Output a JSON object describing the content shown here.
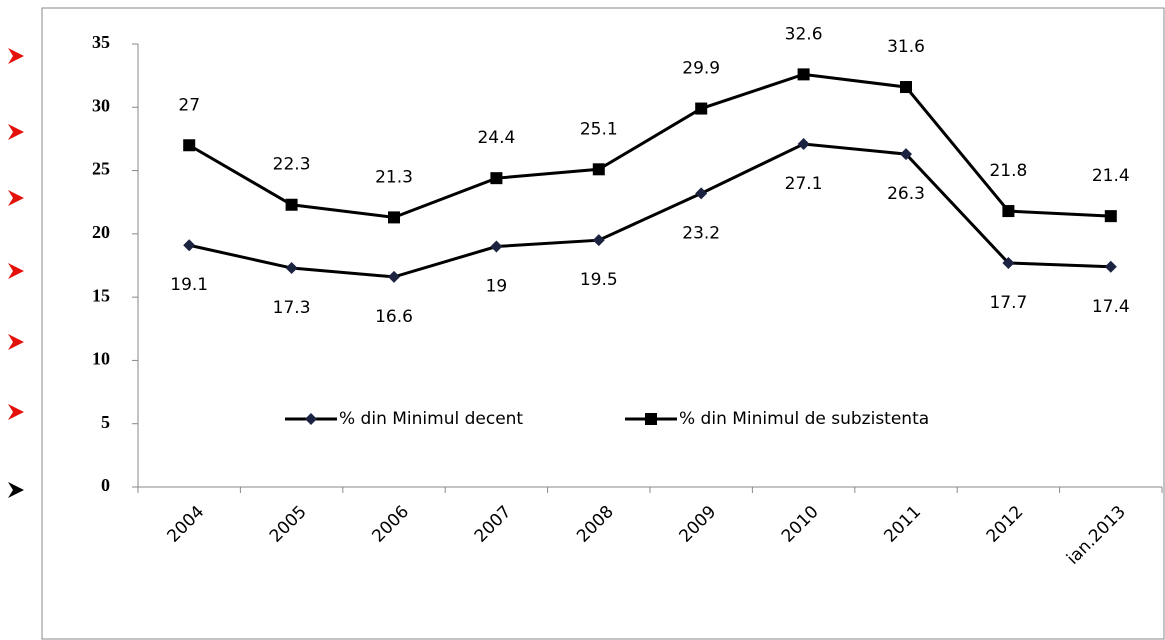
{
  "chart_data": {
    "type": "line",
    "categories": [
      "2004",
      "2005",
      "2006",
      "2007",
      "2008",
      "2009",
      "2010",
      "2011",
      "2012",
      "ian.2013"
    ],
    "series": [
      {
        "name": "% din Minimul decent",
        "color": "#1c2340",
        "marker": "diamond",
        "values": [
          19.1,
          17.3,
          16.6,
          19,
          19.5,
          23.2,
          27.1,
          26.3,
          17.7,
          17.4
        ]
      },
      {
        "name": "% din Minimul de subzistenta",
        "color": "#000000",
        "marker": "square",
        "values": [
          27,
          22.3,
          21.3,
          24.4,
          25.1,
          29.9,
          32.6,
          31.6,
          21.8,
          21.4
        ]
      }
    ],
    "ylim": [
      0,
      35
    ],
    "yticks": [
      0,
      5,
      10,
      15,
      20,
      25,
      30,
      35
    ],
    "grid": false,
    "legend": "center"
  }
}
